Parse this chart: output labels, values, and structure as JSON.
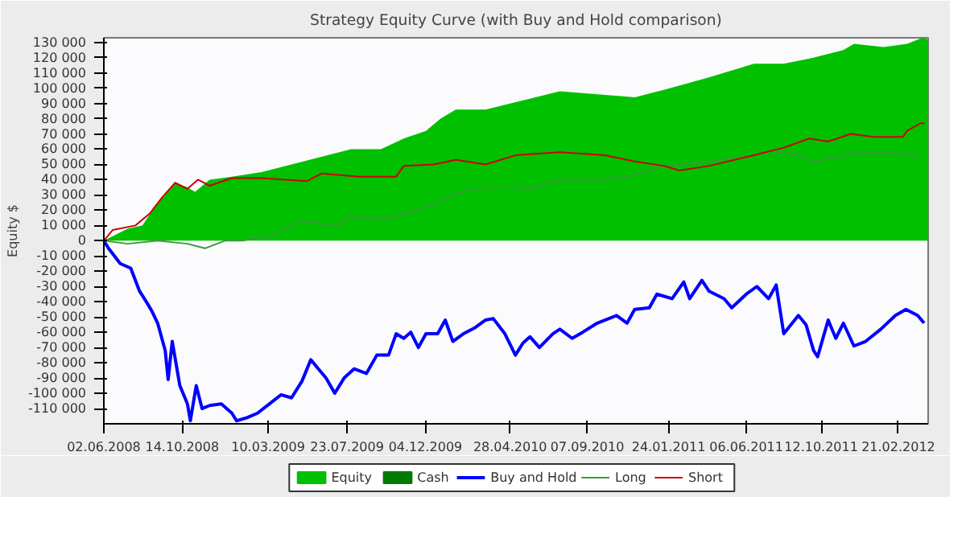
{
  "chart_data": {
    "type": "line",
    "title": "Strategy Equity Curve (with Buy and Hold comparison)",
    "ylabel": "Equity $",
    "xlim": [
      "2008-06-02",
      "2012-04-12"
    ],
    "xticks": [
      {
        "value": "2008-06-02",
        "label": "02.06.2008"
      },
      {
        "value": "2008-10-14",
        "label": "14.10.2008"
      },
      {
        "value": "2009-03-10",
        "label": "10.03.2009"
      },
      {
        "value": "2009-07-23",
        "label": "23.07.2009"
      },
      {
        "value": "2009-12-04",
        "label": "04.12.2009"
      },
      {
        "value": "2010-04-28",
        "label": "28.04.2010"
      },
      {
        "value": "2010-09-07",
        "label": "07.09.2010"
      },
      {
        "value": "2011-01-24",
        "label": "24.01.2011"
      },
      {
        "value": "2011-06-06",
        "label": "06.06.2011"
      },
      {
        "value": "2011-10-12",
        "label": "12.10.2011"
      },
      {
        "value": "2012-02-21",
        "label": "21.02.2012"
      }
    ],
    "ylim": [
      -120000,
      133000
    ],
    "yticks": [
      {
        "value": -110000,
        "label": "-110 000"
      },
      {
        "value": -100000,
        "label": "-100 000"
      },
      {
        "value": -90000,
        "label": "-90 000"
      },
      {
        "value": -80000,
        "label": "-80 000"
      },
      {
        "value": -70000,
        "label": "-70 000"
      },
      {
        "value": -60000,
        "label": "-60 000"
      },
      {
        "value": -50000,
        "label": "-50 000"
      },
      {
        "value": -40000,
        "label": "-40 000"
      },
      {
        "value": -30000,
        "label": "-30 000"
      },
      {
        "value": -20000,
        "label": "-20 000"
      },
      {
        "value": -10000,
        "label": "-10 000"
      },
      0,
      {
        "value": 10000,
        "label": "10 000"
      },
      {
        "value": 20000,
        "label": "20 000"
      },
      {
        "value": 30000,
        "label": "30 000"
      },
      {
        "value": 40000,
        "label": "40 000"
      },
      {
        "value": 50000,
        "label": "50 000"
      },
      {
        "value": 60000,
        "label": "60 000"
      },
      {
        "value": 70000,
        "label": "70 000"
      },
      {
        "value": 80000,
        "label": "80 000"
      },
      {
        "value": 90000,
        "label": "90 000"
      },
      {
        "value": 100000,
        "label": "100 000"
      },
      {
        "value": 110000,
        "label": "110 000"
      },
      {
        "value": 120000,
        "label": "120 000"
      },
      {
        "value": 130000,
        "label": "130 000"
      }
    ],
    "legend": "bottom",
    "line_style": "solid",
    "series": [
      {
        "name": "Equity",
        "type": "area",
        "color": "#00c000",
        "x": [
          "2008-06-02",
          "2008-06-17",
          "2008-07-13",
          "2008-08-07",
          "2008-09-02",
          "2008-09-15",
          "2008-10-02",
          "2008-10-23",
          "2008-11-05",
          "2008-11-30",
          "2009-01-07",
          "2009-02-27",
          "2009-04-19",
          "2009-06-09",
          "2009-07-30",
          "2009-09-19",
          "2009-10-28",
          "2009-12-05",
          "2009-12-30",
          "2010-01-25",
          "2010-03-17",
          "2010-07-22",
          "2010-11-27",
          "2011-01-17",
          "2011-04-03",
          "2011-06-19",
          "2011-08-09",
          "2011-09-29",
          "2011-11-19",
          "2011-12-07",
          "2012-01-27",
          "2012-03-07",
          "2012-04-02",
          "2012-04-12"
        ],
        "values": [
          0,
          3000,
          8000,
          10000,
          25000,
          30000,
          38000,
          35000,
          32000,
          40000,
          42000,
          45000,
          50000,
          55000,
          60000,
          60000,
          67000,
          72000,
          80000,
          86000,
          86000,
          98000,
          94000,
          99000,
          107000,
          116000,
          116000,
          120000,
          125000,
          129000,
          127000,
          129000,
          133000,
          132000
        ]
      },
      {
        "name": "Cash",
        "type": "area",
        "color": "#007a00"
      },
      {
        "name": "Buy and Hold",
        "color": "#0000ff",
        "x": [
          "2008-06-02",
          "2008-06-10",
          "2008-06-30",
          "2008-07-18",
          "2008-08-02",
          "2008-08-12",
          "2008-08-23",
          "2008-09-02",
          "2008-09-15",
          "2008-09-20",
          "2008-09-27",
          "2008-10-10",
          "2008-10-23",
          "2008-10-28",
          "2008-11-07",
          "2008-11-17",
          "2008-11-30",
          "2008-12-20",
          "2009-01-07",
          "2009-01-15",
          "2009-02-02",
          "2009-02-20",
          "2009-03-12",
          "2009-04-01",
          "2009-04-19",
          "2009-05-07",
          "2009-05-22",
          "2009-06-04",
          "2009-06-17",
          "2009-07-02",
          "2009-07-18",
          "2009-08-04",
          "2009-08-25",
          "2009-09-12",
          "2009-10-02",
          "2009-10-15",
          "2009-10-28",
          "2009-11-09",
          "2009-11-22",
          "2009-12-05",
          "2009-12-25",
          "2010-01-07",
          "2010-01-20",
          "2010-02-07",
          "2010-02-27",
          "2010-03-17",
          "2010-03-30",
          "2010-04-19",
          "2010-05-07",
          "2010-05-20",
          "2010-06-01",
          "2010-06-17",
          "2010-07-10",
          "2010-07-22",
          "2010-08-12",
          "2010-08-30",
          "2010-09-24",
          "2010-10-27",
          "2010-11-14",
          "2010-11-27",
          "2010-12-22",
          "2011-01-04",
          "2011-01-30",
          "2011-02-19",
          "2011-03-01",
          "2011-03-22",
          "2011-04-03",
          "2011-04-29",
          "2011-05-12",
          "2011-06-06",
          "2011-06-24",
          "2011-07-14",
          "2011-07-27",
          "2011-08-09",
          "2011-09-03",
          "2011-09-16",
          "2011-09-29",
          "2011-10-06",
          "2011-10-24",
          "2011-11-06",
          "2011-11-19",
          "2011-12-07",
          "2011-12-27",
          "2012-01-22",
          "2012-02-16",
          "2012-03-05",
          "2012-03-25",
          "2012-04-05"
        ],
        "values": [
          0,
          -5000,
          -15000,
          -18000,
          -33000,
          -39000,
          -46000,
          -54000,
          -72000,
          -91000,
          -66000,
          -95000,
          -107000,
          -118000,
          -95000,
          -110000,
          -108000,
          -107000,
          -113000,
          -118000,
          -116000,
          -113000,
          -107000,
          -101000,
          -103000,
          -92000,
          -78000,
          -84000,
          -90000,
          -100000,
          -90000,
          -84000,
          -87000,
          -75000,
          -75000,
          -61000,
          -64000,
          -60000,
          -70000,
          -61000,
          -61000,
          -52000,
          -66000,
          -61000,
          -57000,
          -52000,
          -51000,
          -61000,
          -75000,
          -67000,
          -63000,
          -70000,
          -61000,
          -58000,
          -64000,
          -60000,
          -54000,
          -49000,
          -54000,
          -45000,
          -44000,
          -35000,
          -38000,
          -27000,
          -38000,
          -26000,
          -33000,
          -38000,
          -44000,
          -35000,
          -30000,
          -38000,
          -29000,
          -61000,
          -49000,
          -55000,
          -72000,
          -76000,
          -52000,
          -64000,
          -54000,
          -69000,
          -66000,
          -58000,
          -49000,
          -45000,
          -49000,
          -54000
        ]
      },
      {
        "name": "Long",
        "color": "#3a9a3a",
        "x": [
          "2008-06-02",
          "2008-07-13",
          "2008-09-02",
          "2008-10-23",
          "2008-11-22",
          "2008-12-26",
          "2009-01-25",
          "2009-03-25",
          "2009-05-02",
          "2009-07-05",
          "2009-07-30",
          "2009-09-19",
          "2009-11-09",
          "2009-12-30",
          "2010-01-25",
          "2010-03-17",
          "2010-05-07",
          "2010-06-01",
          "2010-07-22",
          "2010-10-07",
          "2010-11-27",
          "2011-01-17",
          "2011-04-03",
          "2011-06-19",
          "2011-07-14",
          "2011-09-03",
          "2011-09-29",
          "2011-11-19",
          "2011-12-02",
          "2012-02-03",
          "2012-03-25"
        ],
        "values": [
          0,
          -2000,
          0,
          -2000,
          -5000,
          0,
          0,
          4000,
          13000,
          10000,
          16000,
          14000,
          19000,
          25000,
          31000,
          35000,
          35000,
          34000,
          40000,
          40000,
          43000,
          49000,
          52000,
          56000,
          59000,
          56000,
          52000,
          55000,
          58000,
          58000,
          55000
        ]
      },
      {
        "name": "Short",
        "color": "#cc0000",
        "x": [
          "2008-06-02",
          "2008-06-17",
          "2008-07-26",
          "2008-08-20",
          "2008-09-09",
          "2008-10-02",
          "2008-10-23",
          "2008-11-10",
          "2008-11-30",
          "2009-01-07",
          "2009-02-27",
          "2009-05-15",
          "2009-06-09",
          "2009-08-14",
          "2009-10-15",
          "2009-10-28",
          "2009-12-18",
          "2010-01-25",
          "2010-03-17",
          "2010-05-07",
          "2010-07-22",
          "2010-10-07",
          "2010-11-27",
          "2011-01-17",
          "2011-02-11",
          "2011-04-03",
          "2011-06-19",
          "2011-08-09",
          "2011-09-22",
          "2011-10-24",
          "2011-12-02",
          "2012-01-09",
          "2012-02-29",
          "2012-03-07",
          "2012-03-30",
          "2012-04-06"
        ],
        "values": [
          0,
          7000,
          10000,
          18000,
          28000,
          38000,
          34000,
          40000,
          36000,
          41000,
          41000,
          39000,
          44000,
          42000,
          42000,
          49000,
          50000,
          53000,
          50000,
          56000,
          58000,
          56000,
          52000,
          49000,
          46000,
          49000,
          56000,
          61000,
          67000,
          65000,
          70000,
          68000,
          68000,
          72000,
          77000,
          77000
        ]
      }
    ]
  }
}
